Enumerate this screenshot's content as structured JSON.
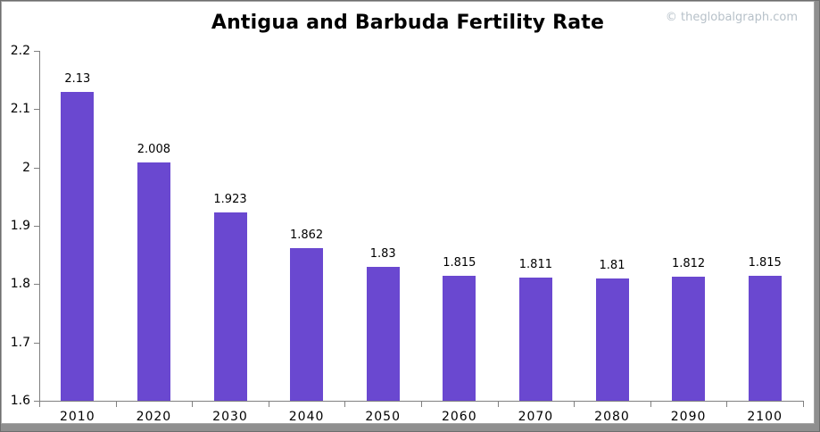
{
  "header": {
    "title": "Antigua and Barbuda Fertility Rate",
    "watermark": "© theglobalgraph.com"
  },
  "chart_data": {
    "type": "bar",
    "title": "Antigua and Barbuda Fertility Rate",
    "categories": [
      "2010",
      "2020",
      "2030",
      "2040",
      "2050",
      "2060",
      "2070",
      "2080",
      "2090",
      "2100"
    ],
    "values": [
      2.13,
      2.008,
      1.923,
      1.862,
      1.83,
      1.815,
      1.811,
      1.81,
      1.812,
      1.815
    ],
    "value_labels": [
      "2.13",
      "2.008",
      "1.923",
      "1.862",
      "1.83",
      "1.815",
      "1.811",
      "1.81",
      "1.812",
      "1.815"
    ],
    "xlabel": "",
    "ylabel": "",
    "ylim": [
      1.6,
      2.2
    ],
    "ytick_labels": [
      "1.6",
      "1.7",
      "1.8",
      "1.9",
      "2",
      "2.1",
      "2.2"
    ],
    "grid": false,
    "legend": false,
    "bar_color": "#6a48d0",
    "axis_color": "#808080",
    "watermark_color": "#b7c1c9"
  }
}
